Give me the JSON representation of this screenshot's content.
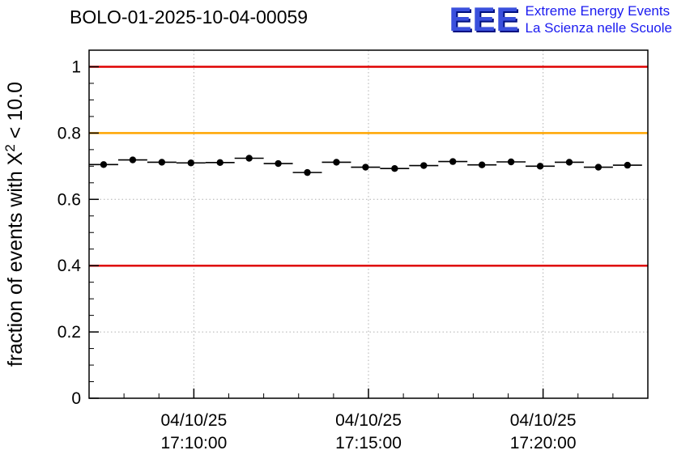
{
  "header": {
    "title": "BOLO-01-2025-10-04-00059",
    "logo": {
      "acronym": "EEE",
      "line1": "Extreme Energy Events",
      "line2": "La Scienza nelle Scuole"
    }
  },
  "chart_data": {
    "type": "scatter",
    "title": "BOLO-01-2025-10-04-00059",
    "ylabel": {
      "pre": "fraction of events with X",
      "sup": "2",
      "post": " < 10.0"
    },
    "ylim": [
      0,
      1.05
    ],
    "yticks": [
      {
        "v": 0,
        "label": "0"
      },
      {
        "v": 0.2,
        "label": "0.2"
      },
      {
        "v": 0.4,
        "label": "0.4"
      },
      {
        "v": 0.6,
        "label": "0.6"
      },
      {
        "v": 0.8,
        "label": "0.8"
      },
      {
        "v": 1,
        "label": "1"
      }
    ],
    "y_minor_step": 0.05,
    "x_axis_start_time": "17:07:00",
    "xlim_sec": [
      0,
      960
    ],
    "xticks": [
      {
        "sec": 180,
        "date": "04/10/25",
        "time": "17:10:00"
      },
      {
        "sec": 480,
        "date": "04/10/25",
        "time": "17:15:00"
      },
      {
        "sec": 780,
        "date": "04/10/25",
        "time": "17:20:00"
      }
    ],
    "x_minor_step_sec": 60,
    "grid": true,
    "legend": "none",
    "reference_lines": [
      {
        "y": 1.0,
        "color": "#df0000"
      },
      {
        "y": 0.8,
        "color": "#ffa500"
      },
      {
        "y": 0.4,
        "color": "#df0000"
      }
    ],
    "bin_halfwidth_sec": 25,
    "points": [
      {
        "time": "17:07:25",
        "sec": 25,
        "y": 0.705
      },
      {
        "time": "17:08:15",
        "sec": 75,
        "y": 0.719
      },
      {
        "time": "17:09:05",
        "sec": 125,
        "y": 0.712
      },
      {
        "time": "17:09:55",
        "sec": 175,
        "y": 0.71
      },
      {
        "time": "17:10:45",
        "sec": 225,
        "y": 0.711
      },
      {
        "time": "17:11:35",
        "sec": 275,
        "y": 0.724
      },
      {
        "time": "17:12:25",
        "sec": 325,
        "y": 0.708
      },
      {
        "time": "17:13:15",
        "sec": 375,
        "y": 0.681
      },
      {
        "time": "17:14:05",
        "sec": 425,
        "y": 0.712
      },
      {
        "time": "17:14:55",
        "sec": 475,
        "y": 0.697
      },
      {
        "time": "17:15:45",
        "sec": 525,
        "y": 0.693
      },
      {
        "time": "17:16:35",
        "sec": 575,
        "y": 0.702
      },
      {
        "time": "17:17:25",
        "sec": 625,
        "y": 0.714
      },
      {
        "time": "17:18:15",
        "sec": 675,
        "y": 0.704
      },
      {
        "time": "17:19:05",
        "sec": 725,
        "y": 0.713
      },
      {
        "time": "17:19:55",
        "sec": 775,
        "y": 0.7
      },
      {
        "time": "17:20:45",
        "sec": 825,
        "y": 0.712
      },
      {
        "time": "17:21:35",
        "sec": 875,
        "y": 0.697
      },
      {
        "time": "17:22:25",
        "sec": 925,
        "y": 0.703
      }
    ],
    "colors": {
      "marker": "#000000",
      "grid": "#b0b0b0",
      "frame": "#000000",
      "axis_text": "#000000"
    }
  }
}
